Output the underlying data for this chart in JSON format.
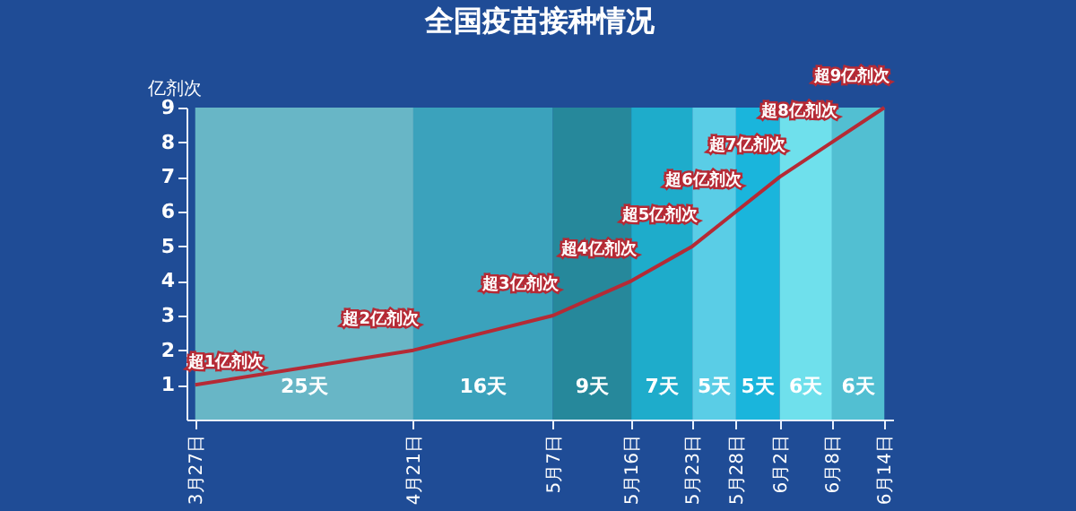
{
  "chart_data": {
    "type": "line",
    "title": "全国疫苗接种情况",
    "ylabel": "亿剂次",
    "x": [
      "--03-27",
      "--04-21",
      "--05-07",
      "--05-16",
      "--05-23",
      "--05-28",
      "--06-02",
      "--06-08",
      "--06-14"
    ],
    "series": [
      {
        "color": "#b52a35",
        "values": [
          1,
          2,
          3,
          4,
          5,
          6,
          7,
          8,
          9
        ],
        "value_labels": [
          "超1亿剂次",
          "超2亿剂次",
          "超3亿剂次",
          "超4亿剂次",
          "超5亿剂次",
          "超6亿剂次",
          "超7亿剂次",
          "超8亿剂次",
          "超9亿剂次"
        ]
      }
    ],
    "xlim": [
      "--03-26",
      "--06-15"
    ],
    "xticks": [
      {
        "value": "--03-27",
        "label": "3月27日"
      },
      {
        "value": "--04-21",
        "label": "4月21日"
      },
      {
        "value": "--05-07",
        "label": "5月7日"
      },
      {
        "value": "--05-16",
        "label": "5月16日"
      },
      {
        "value": "--05-23",
        "label": "5月23日"
      },
      {
        "value": "--05-28",
        "label": "5月28日"
      },
      {
        "value": "--06-02",
        "label": "6月2日"
      },
      {
        "value": "--06-08",
        "label": "6月8日"
      },
      {
        "value": "--06-14",
        "label": "6月14日"
      }
    ],
    "ylim": [
      0,
      9
    ],
    "yticks": [
      1,
      2,
      3,
      4,
      5,
      6,
      7,
      8,
      9
    ],
    "bands": [
      {
        "axis": "x",
        "from": "--03-27",
        "to": "--04-21",
        "label": "25天",
        "color": "#68b6c6"
      },
      {
        "axis": "x",
        "from": "--04-21",
        "to": "--05-07",
        "label": "16天",
        "color": "#3ba2bc"
      },
      {
        "axis": "x",
        "from": "--05-07",
        "to": "--05-16",
        "label": "9天",
        "color": "#26889b"
      },
      {
        "axis": "x",
        "from": "--05-16",
        "to": "--05-23",
        "label": "7天",
        "color": "#1eaccb"
      },
      {
        "axis": "x",
        "from": "--05-23",
        "to": "--05-28",
        "label": "5天",
        "color": "#5acde6"
      },
      {
        "axis": "x",
        "from": "--05-28",
        "to": "--06-02",
        "label": "5天",
        "color": "#1ab5dc"
      },
      {
        "axis": "x",
        "from": "--06-02",
        "to": "--06-08",
        "label": "6天",
        "color": "#6fe0ec"
      },
      {
        "axis": "x",
        "from": "--06-08",
        "to": "--06-14",
        "label": "6天",
        "color": "#52bfd2"
      }
    ],
    "grid": false,
    "marker": "none",
    "line_style": "solid"
  }
}
